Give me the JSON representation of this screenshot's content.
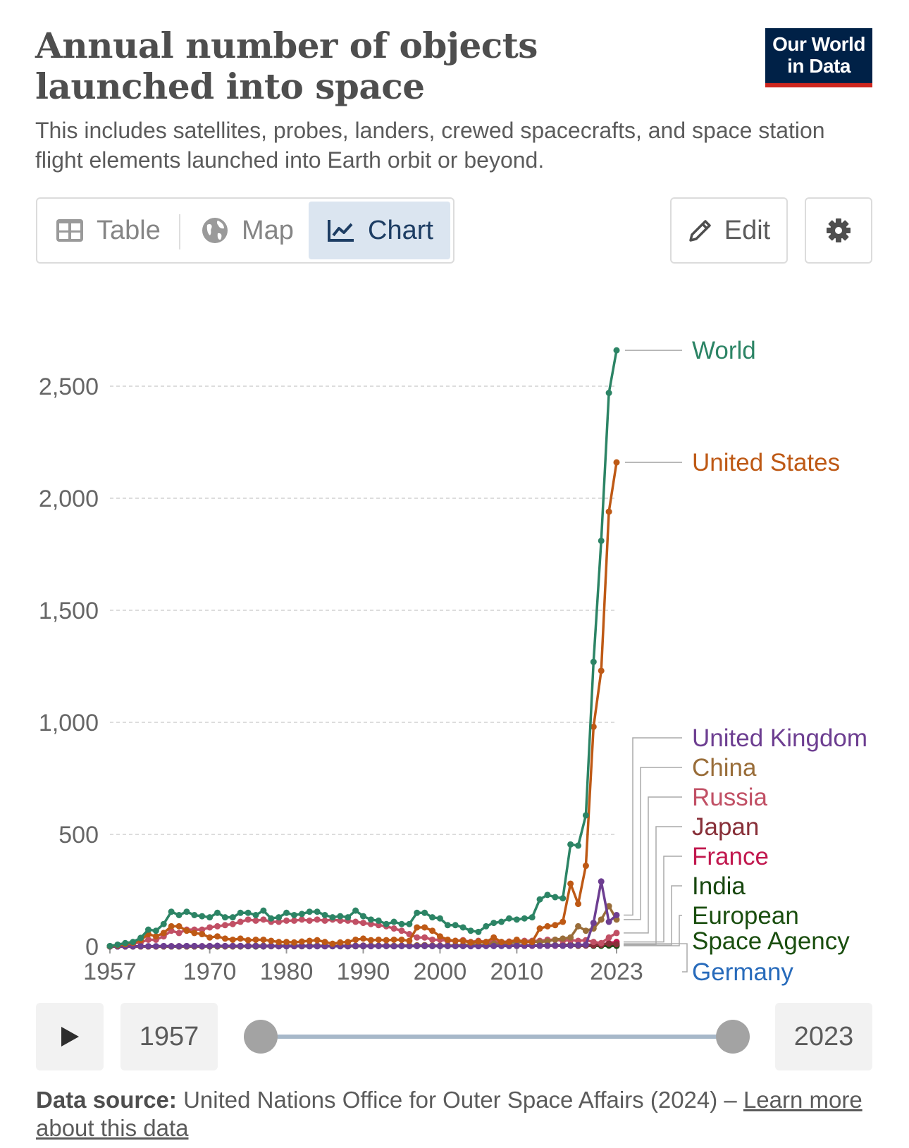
{
  "header": {
    "title": "Annual number of objects launched into space",
    "subtitle": "This includes satellites, probes, landers, crewed spacecrafts, and space station flight elements launched into Earth orbit or beyond.",
    "logo_line1": "Our World",
    "logo_line2": "in Data"
  },
  "tabs": [
    {
      "label": "Table",
      "icon": "table-icon"
    },
    {
      "label": "Map",
      "icon": "globe-icon"
    },
    {
      "label": "Chart",
      "icon": "line-chart-icon",
      "active": true
    }
  ],
  "toolbar": {
    "edit_label": "Edit",
    "settings_icon": "gear-icon"
  },
  "timeline": {
    "start_year": "1957",
    "end_year": "2023",
    "play_icon": "play-icon"
  },
  "footer": {
    "source_label": "Data source:",
    "source_text": "United Nations Office for Outer Space Affairs (2024) –",
    "link_text": "Learn more about this data"
  },
  "colors": {
    "World": "#2c8465",
    "United States": "#be5915",
    "United Kingdom": "#6d3e91",
    "China": "#996d39",
    "Russia": "#c15065",
    "Japan": "#883039",
    "France": "#c1184e",
    "India": "#18470f",
    "European Space Agency": "#1a4e0f",
    "Germany": "#286bbb",
    "grid": "#dddddd",
    "axis_text": "#666666"
  },
  "chart_data": {
    "type": "line",
    "title": "Annual number of objects launched into space",
    "xlabel": "",
    "ylabel": "",
    "xlim": [
      1957,
      2023
    ],
    "ylim": [
      0,
      2750
    ],
    "yticks": [
      0,
      500,
      1000,
      1500,
      2000,
      2500
    ],
    "ytick_labels": [
      "0",
      "500",
      "1,000",
      "1,500",
      "2,000",
      "2,500"
    ],
    "xtick_labels": [
      "1957",
      "1970",
      "1980",
      "1990",
      "2000",
      "2010",
      "2023"
    ],
    "xtick_values": [
      1957,
      1970,
      1980,
      1990,
      2000,
      2010,
      2023
    ],
    "grid": true,
    "legend": "end-of-line labels on right",
    "x_start": 1957,
    "series": [
      {
        "name": "World",
        "values": [
          2,
          8,
          15,
          20,
          38,
          75,
          70,
          100,
          155,
          140,
          155,
          140,
          135,
          130,
          150,
          130,
          130,
          150,
          150,
          140,
          160,
          125,
          130,
          150,
          140,
          145,
          155,
          155,
          140,
          130,
          135,
          130,
          160,
          135,
          120,
          115,
          100,
          110,
          100,
          100,
          150,
          150,
          130,
          125,
          95,
          95,
          85,
          70,
          65,
          90,
          105,
          110,
          125,
          120,
          125,
          130,
          210,
          230,
          220,
          215,
          455,
          450,
          585,
          1270,
          1810,
          2470,
          2660
        ]
      },
      {
        "name": "United States",
        "values": [
          1,
          5,
          10,
          16,
          28,
          55,
          45,
          60,
          90,
          90,
          70,
          60,
          55,
          40,
          45,
          35,
          30,
          35,
          28,
          30,
          30,
          25,
          20,
          20,
          18,
          22,
          25,
          28,
          20,
          12,
          18,
          20,
          30,
          35,
          28,
          30,
          28,
          30,
          30,
          25,
          85,
          85,
          70,
          45,
          30,
          25,
          25,
          18,
          22,
          20,
          40,
          20,
          20,
          30,
          20,
          20,
          80,
          90,
          95,
          110,
          280,
          190,
          360,
          980,
          1230,
          1940,
          2160
        ]
      },
      {
        "name": "United Kingdom",
        "values": [
          0,
          0,
          0,
          0,
          1,
          1,
          1,
          2,
          1,
          1,
          2,
          2,
          1,
          2,
          3,
          2,
          2,
          2,
          2,
          2,
          1,
          2,
          1,
          1,
          2,
          2,
          1,
          1,
          1,
          1,
          1,
          1,
          2,
          2,
          1,
          2,
          2,
          1,
          2,
          2,
          2,
          3,
          2,
          2,
          2,
          2,
          2,
          1,
          1,
          2,
          2,
          3,
          3,
          3,
          3,
          4,
          3,
          3,
          4,
          3,
          4,
          6,
          8,
          105,
          290,
          110,
          140
        ]
      },
      {
        "name": "China",
        "values": [
          0,
          0,
          0,
          0,
          0,
          0,
          0,
          0,
          0,
          0,
          0,
          0,
          0,
          1,
          1,
          0,
          0,
          1,
          3,
          2,
          2,
          1,
          3,
          2,
          2,
          1,
          2,
          3,
          2,
          2,
          2,
          1,
          2,
          2,
          3,
          3,
          3,
          3,
          3,
          3,
          5,
          6,
          4,
          3,
          4,
          5,
          6,
          10,
          8,
          10,
          12,
          13,
          15,
          18,
          20,
          22,
          20,
          23,
          30,
          35,
          40,
          90,
          70,
          80,
          120,
          180,
          120
        ]
      },
      {
        "name": "Russia",
        "values": [
          1,
          3,
          8,
          12,
          18,
          30,
          30,
          45,
          70,
          60,
          75,
          75,
          75,
          85,
          90,
          95,
          100,
          110,
          120,
          115,
          120,
          110,
          110,
          115,
          115,
          120,
          115,
          120,
          115,
          120,
          115,
          115,
          110,
          105,
          100,
          95,
          90,
          80,
          70,
          55,
          40,
          40,
          30,
          30,
          25,
          25,
          28,
          20,
          25,
          20,
          20,
          20,
          22,
          22,
          25,
          25,
          25,
          30,
          30,
          25,
          28,
          25,
          28,
          20,
          15,
          40,
          60
        ]
      },
      {
        "name": "Japan",
        "values": [
          0,
          0,
          0,
          0,
          0,
          0,
          0,
          0,
          0,
          0,
          0,
          0,
          0,
          1,
          1,
          1,
          2,
          1,
          2,
          2,
          3,
          2,
          3,
          2,
          3,
          3,
          2,
          3,
          3,
          2,
          3,
          3,
          3,
          4,
          3,
          3,
          3,
          2,
          3,
          3,
          3,
          4,
          3,
          3,
          3,
          4,
          3,
          3,
          4,
          4,
          3,
          4,
          4,
          3,
          5,
          5,
          4,
          5,
          5,
          6,
          6,
          4,
          6,
          8,
          10,
          12,
          10
        ]
      },
      {
        "name": "France",
        "values": [
          0,
          0,
          0,
          0,
          0,
          0,
          0,
          0,
          1,
          1,
          1,
          1,
          1,
          1,
          2,
          1,
          2,
          1,
          2,
          2,
          1,
          2,
          1,
          2,
          1,
          2,
          2,
          2,
          1,
          2,
          2,
          2,
          2,
          2,
          2,
          3,
          3,
          2,
          3,
          3,
          3,
          3,
          3,
          3,
          3,
          3,
          3,
          3,
          3,
          3,
          3,
          3,
          3,
          3,
          3,
          3,
          3,
          3,
          3,
          4,
          4,
          4,
          5,
          6,
          8,
          15,
          20
        ]
      },
      {
        "name": "India",
        "values": [
          0,
          0,
          0,
          0,
          0,
          0,
          0,
          0,
          0,
          0,
          0,
          0,
          0,
          0,
          0,
          0,
          0,
          0,
          1,
          0,
          0,
          1,
          1,
          1,
          2,
          1,
          1,
          1,
          1,
          1,
          1,
          1,
          1,
          1,
          2,
          2,
          2,
          1,
          2,
          2,
          2,
          2,
          2,
          2,
          2,
          2,
          2,
          3,
          3,
          3,
          3,
          3,
          4,
          3,
          4,
          4,
          5,
          6,
          5,
          6,
          8,
          6,
          5,
          4,
          6,
          5,
          6
        ]
      },
      {
        "name": "European Space Agency",
        "values": [
          0,
          0,
          0,
          0,
          0,
          0,
          0,
          0,
          0,
          0,
          0,
          0,
          0,
          1,
          1,
          1,
          1,
          2,
          2,
          3,
          3,
          2,
          3,
          3,
          3,
          2,
          3,
          3,
          2,
          2,
          3,
          2,
          3,
          2,
          3,
          3,
          2,
          2,
          3,
          3,
          3,
          3,
          3,
          2,
          3,
          4,
          3,
          3,
          3,
          3,
          3,
          4,
          3,
          3,
          4,
          4,
          3,
          4,
          4,
          3,
          4,
          3,
          4,
          3,
          3,
          4,
          3
        ]
      },
      {
        "name": "Germany",
        "values": [
          0,
          0,
          0,
          0,
          0,
          0,
          0,
          0,
          0,
          0,
          0,
          0,
          0,
          1,
          1,
          1,
          1,
          1,
          1,
          1,
          1,
          1,
          1,
          1,
          1,
          1,
          1,
          1,
          1,
          1,
          1,
          1,
          1,
          2,
          2,
          2,
          2,
          2,
          2,
          2,
          2,
          2,
          2,
          2,
          2,
          2,
          2,
          2,
          2,
          2,
          2,
          2,
          2,
          3,
          3,
          3,
          3,
          4,
          4,
          4,
          5,
          6,
          7,
          8,
          10,
          12,
          12
        ]
      }
    ]
  }
}
